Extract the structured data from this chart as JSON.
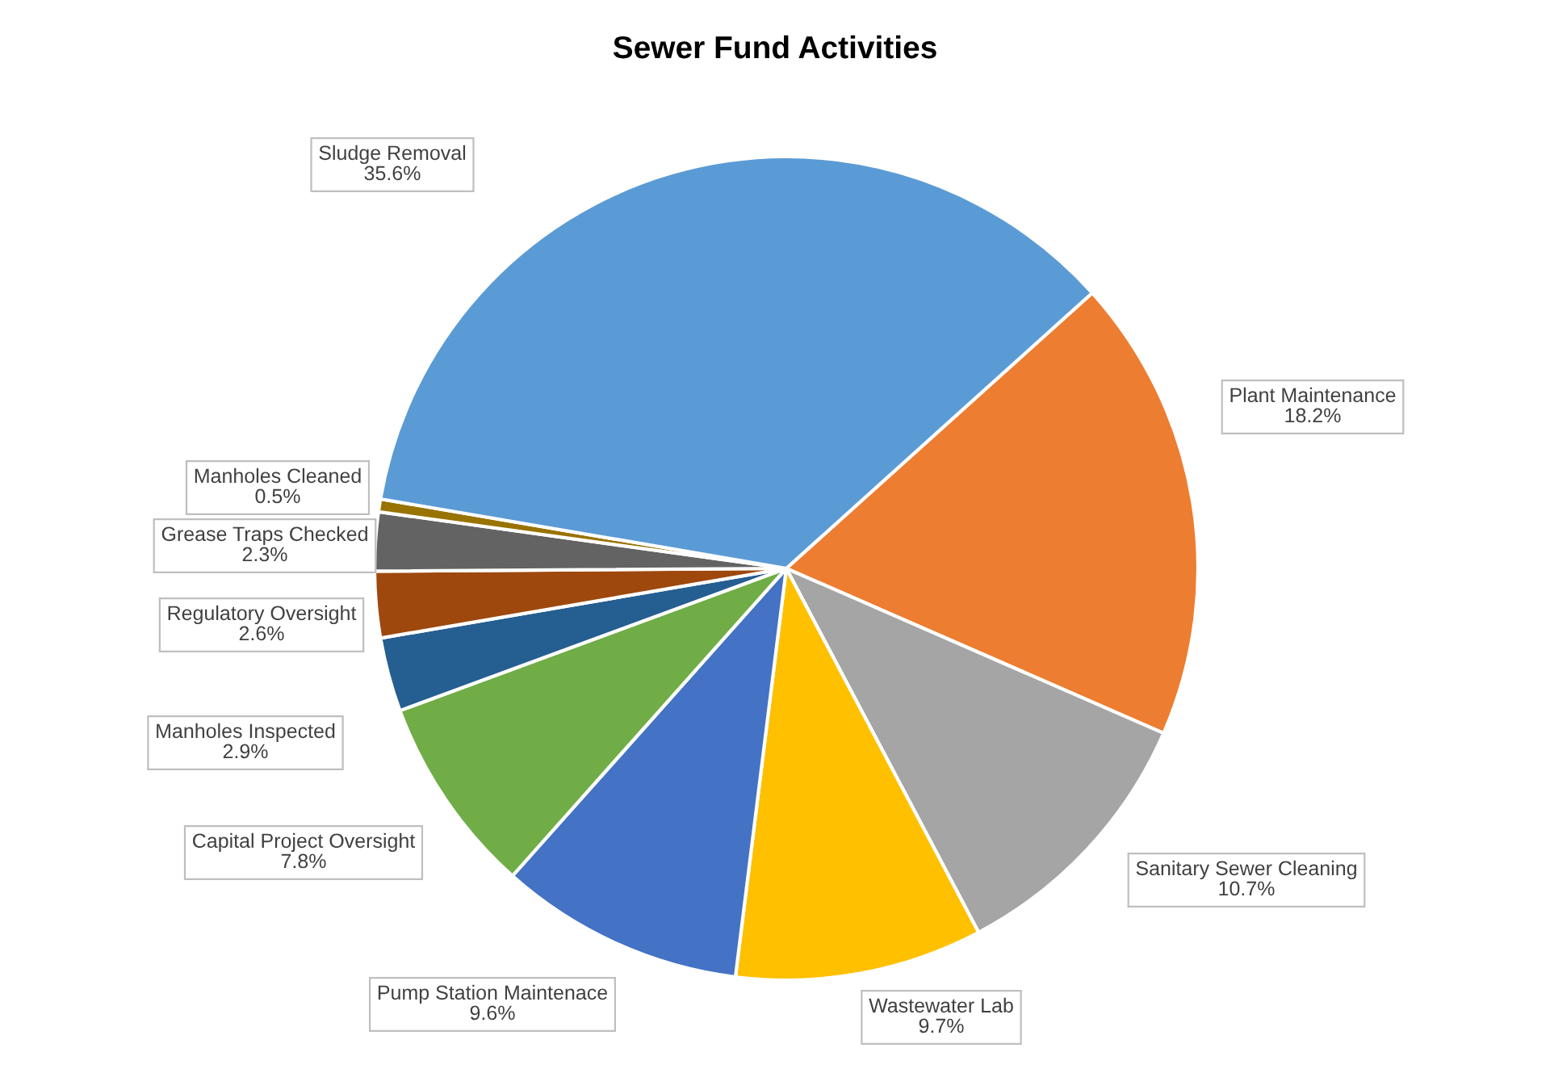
{
  "chart_data": {
    "type": "pie",
    "title": "Sewer Fund Activities",
    "categories": [
      "Plant Maintenance",
      "Sanitary Sewer Cleaning",
      "Wastewater Lab",
      "Pump Station Maintenace",
      "Capital Project Oversight",
      "Manholes Inspected",
      "Regulatory Oversight",
      "Grease Traps Checked",
      "Manholes Cleaned",
      "Sludge Removal"
    ],
    "values": [
      18.2,
      10.7,
      9.7,
      9.6,
      7.8,
      2.9,
      2.6,
      2.3,
      0.5,
      35.6
    ],
    "value_labels": [
      "18.2%",
      "10.7%",
      "9.7%",
      "9.6%",
      "7.8%",
      "2.9%",
      "2.6%",
      "2.3%",
      "0.5%",
      "35.6%"
    ],
    "colors": [
      "#ed7d31",
      "#a5a5a5",
      "#ffc000",
      "#4472c4",
      "#70ad47",
      "#255e91",
      "#9e480e",
      "#636363",
      "#997300",
      "#5b9bd5"
    ],
    "legend": false
  }
}
